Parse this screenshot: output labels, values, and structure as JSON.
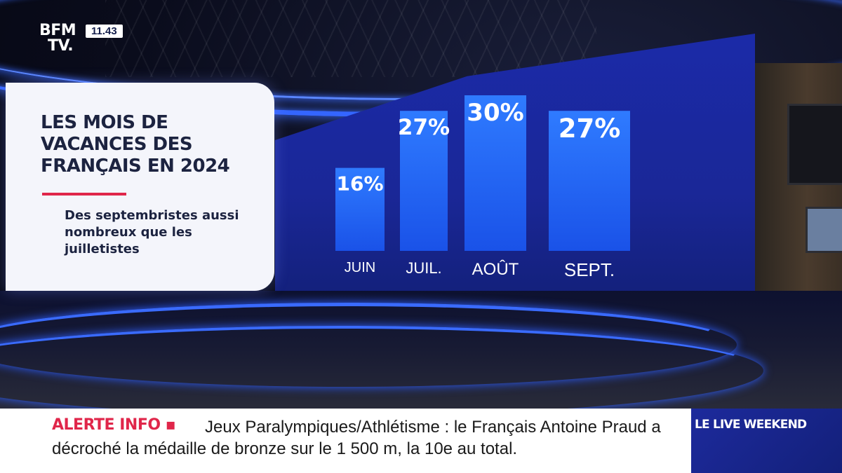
{
  "broadcast": {
    "logo_line1": "BFM",
    "logo_line2": "TV.",
    "clock": "11.43"
  },
  "panel": {
    "title": "Les mois de vacances des Français en 2024",
    "subtitle": "Des septembristes aussi nombreux que les juilletistes"
  },
  "chart_data": {
    "type": "bar",
    "title": "Les mois de vacances des Français en 2024",
    "subtitle": "Des septembristes aussi nombreux que les juilletistes",
    "categories": [
      "JUIN",
      "JUIL.",
      "AOÛT",
      "SEPT."
    ],
    "values": [
      16,
      27,
      30,
      27
    ],
    "value_labels": [
      "16%",
      "27%",
      "30%",
      "27%"
    ],
    "unit": "%",
    "ylim": [
      0,
      30
    ],
    "grid": false,
    "legend": "none",
    "colors": {
      "bar_top": "#2f7bff",
      "bar_bottom": "#1a52e8",
      "label": "#ffffff"
    }
  },
  "ticker": {
    "alert_label": "ALERTE INFO ▪",
    "headline": "Jeux Paralympiques/Athlétisme : le Français Antoine Praud a décroché la médaille de bronze sur le 1 500 m, la 10e au total.",
    "program_label": "LE LIVE WEEKEND"
  },
  "colors": {
    "accent_red": "#e0264a",
    "wall_blue": "#1b2aa8",
    "navy_text": "#1c2340"
  }
}
